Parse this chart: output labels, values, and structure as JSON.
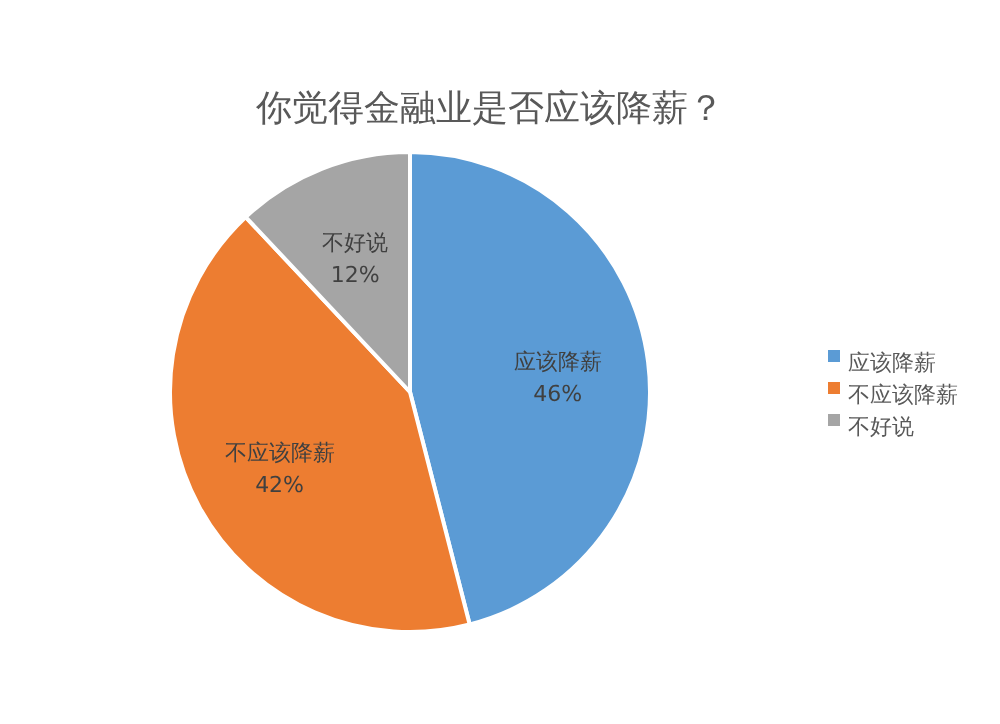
{
  "chart_data": {
    "type": "pie",
    "title": "你觉得金融业是否应该降薪？",
    "categories": [
      "应该降薪",
      "不应该降薪",
      "不好说"
    ],
    "values": [
      46,
      42,
      12
    ],
    "colors": [
      "#5b9bd5",
      "#ed7d31",
      "#a5a5a5"
    ],
    "value_labels": [
      "46%",
      "42%",
      "12%"
    ],
    "legend": "right"
  }
}
